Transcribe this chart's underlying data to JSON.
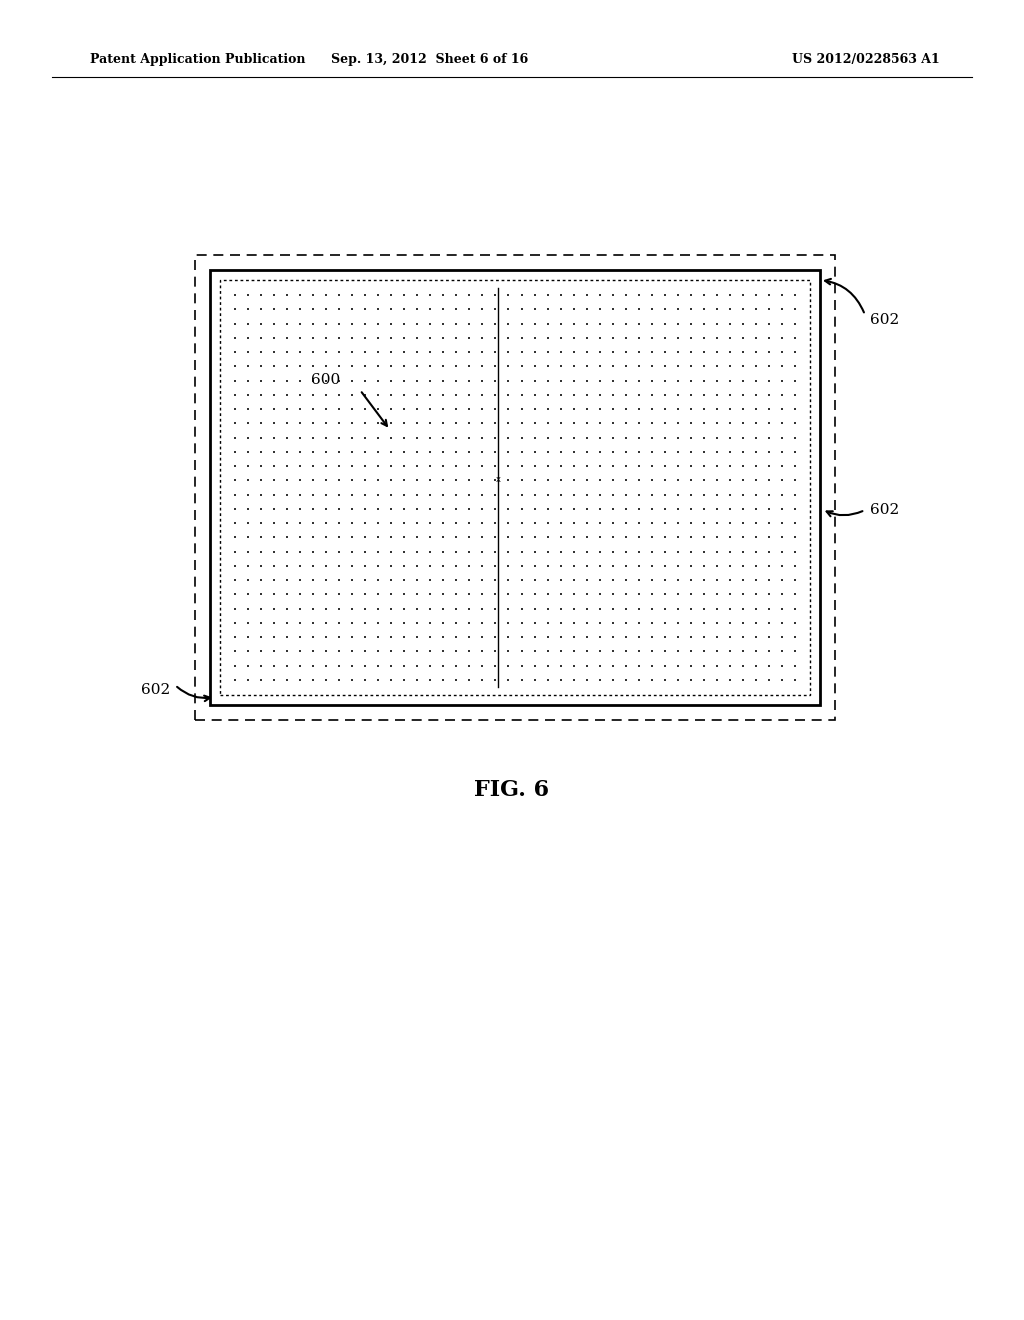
{
  "bg_color": "#ffffff",
  "header_text_left": "Patent Application Publication",
  "header_text_mid": "Sep. 13, 2012  Sheet 6 of 16",
  "header_text_right": "US 2012/0228563 A1",
  "fig_label": "FIG. 6",
  "label_600": "600",
  "label_602": "602",
  "n_dot_rows": 28,
  "n_dot_cols": 44,
  "dot_color": "#333333",
  "line_color": "#000000"
}
